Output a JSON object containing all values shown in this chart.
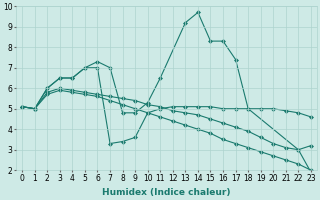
{
  "lines": [
    {
      "x": [
        0,
        1,
        2,
        3,
        4,
        5,
        6,
        7,
        8,
        9,
        10,
        11,
        13,
        14,
        15,
        16,
        17,
        18,
        22,
        23
      ],
      "y": [
        5.1,
        5.0,
        6.0,
        6.5,
        6.5,
        7.0,
        7.3,
        7.0,
        4.8,
        4.8,
        5.3,
        6.5,
        9.2,
        9.7,
        8.3,
        8.3,
        7.4,
        5.0,
        3.0,
        1.9
      ]
    },
    {
      "x": [
        0,
        1,
        2,
        3,
        4,
        5,
        6,
        7,
        8,
        9,
        10,
        11,
        12,
        13,
        14,
        15,
        16,
        17,
        18,
        19,
        20,
        21,
        22,
        23
      ],
      "y": [
        5.1,
        5.0,
        6.0,
        6.5,
        6.5,
        7.0,
        7.0,
        3.3,
        3.4,
        3.6,
        4.8,
        5.0,
        5.1,
        5.1,
        5.1,
        5.1,
        5.0,
        5.0,
        5.0,
        5.0,
        5.0,
        4.9,
        4.8,
        4.6
      ]
    },
    {
      "x": [
        0,
        1,
        2,
        3,
        4,
        5,
        6,
        7,
        8,
        9,
        10,
        11,
        12,
        13,
        14,
        15,
        16,
        17,
        18,
        19,
        20,
        21,
        22,
        23
      ],
      "y": [
        5.1,
        5.0,
        5.8,
        6.0,
        5.9,
        5.8,
        5.7,
        5.6,
        5.5,
        5.4,
        5.2,
        5.1,
        4.9,
        4.8,
        4.7,
        4.5,
        4.3,
        4.1,
        3.9,
        3.6,
        3.3,
        3.1,
        3.0,
        3.2
      ]
    },
    {
      "x": [
        0,
        1,
        2,
        3,
        4,
        5,
        6,
        7,
        8,
        9,
        10,
        11,
        12,
        13,
        14,
        15,
        16,
        17,
        18,
        19,
        20,
        21,
        22,
        23
      ],
      "y": [
        5.1,
        5.0,
        5.7,
        5.9,
        5.8,
        5.7,
        5.6,
        5.4,
        5.2,
        5.0,
        4.8,
        4.6,
        4.4,
        4.2,
        4.0,
        3.8,
        3.5,
        3.3,
        3.1,
        2.9,
        2.7,
        2.5,
        2.3,
        2.0
      ]
    }
  ],
  "line_color": "#1a7a6e",
  "marker": "D",
  "markersize": 2.0,
  "linewidth": 0.8,
  "xlabel": "Humidex (Indice chaleur)",
  "xlim": [
    -0.5,
    23.5
  ],
  "ylim": [
    2,
    10
  ],
  "xticks": [
    0,
    1,
    2,
    3,
    4,
    5,
    6,
    7,
    8,
    9,
    10,
    11,
    12,
    13,
    14,
    15,
    16,
    17,
    18,
    19,
    20,
    21,
    22,
    23
  ],
  "yticks": [
    2,
    3,
    4,
    5,
    6,
    7,
    8,
    9,
    10
  ],
  "bg_color": "#ceeae6",
  "grid_color": "#aed4cf",
  "tick_label_fontsize": 5.5,
  "xlabel_fontsize": 6.5,
  "fig_width": 3.2,
  "fig_height": 2.0,
  "dpi": 100
}
